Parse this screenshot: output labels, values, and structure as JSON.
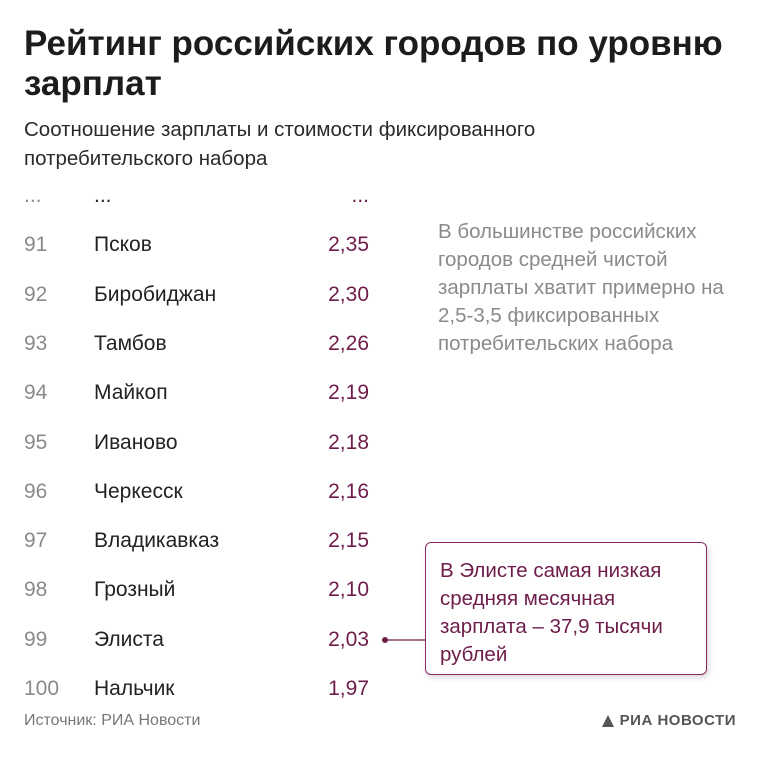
{
  "title": "Рейтинг российских городов по уровню зарплат",
  "subtitle": "Соотношение зарплаты и стоимости фиксированного потребительского набора",
  "chart_data": {
    "type": "table",
    "title": "Рейтинг российских городов по уровню зарплат",
    "subtitle": "Соотношение зарплаты и стоимости фиксированного потребительского набора",
    "columns": [
      "rank",
      "city",
      "ratio"
    ],
    "ellipsis_row": {
      "rank": "...",
      "city": "...",
      "ratio": "..."
    },
    "rows": [
      {
        "rank": "91",
        "city": "Псков",
        "ratio": "2,35"
      },
      {
        "rank": "92",
        "city": "Биробиджан",
        "ratio": "2,30"
      },
      {
        "rank": "93",
        "city": "Тамбов",
        "ratio": "2,26"
      },
      {
        "rank": "94",
        "city": "Майкоп",
        "ratio": "2,19"
      },
      {
        "rank": "95",
        "city": "Иваново",
        "ratio": "2,18"
      },
      {
        "rank": "96",
        "city": "Черкесск",
        "ratio": "2,16"
      },
      {
        "rank": "97",
        "city": "Владикавказ",
        "ratio": "2,15"
      },
      {
        "rank": "98",
        "city": "Грозный",
        "ratio": "2,10"
      },
      {
        "rank": "99",
        "city": "Элиста",
        "ratio": "2,03"
      },
      {
        "rank": "100",
        "city": "Нальчик",
        "ratio": "1,97"
      }
    ],
    "annotations": [
      "В большинстве российских городов средней чистой зарплаты хватит примерно на 2,5-3,5 фиксированных потребительских набора",
      "В Элисте самая низкая средняя месячная зарплата – 37,9 тысячи рублей"
    ]
  },
  "note": "В большинстве российских городов средней чистой зарплаты хватит примерно на 2,5-3,5 фиксированных потребительских набора",
  "callout": {
    "text": "В Элисте самая низкая средняя месячная зарплата – 37,9 тысячи рублей",
    "target_rank": "99"
  },
  "footer": {
    "source": "Источник: РИА Новости",
    "logo": "РИА НОВОСТИ"
  },
  "colors": {
    "accent": "#6e1c4a",
    "callout_border": "#8a2b5f",
    "muted": "#8a8a8a",
    "text": "#1c1c1c"
  },
  "icons": {
    "logo": "ria-logo-icon",
    "connector_dot": "dot-icon"
  }
}
